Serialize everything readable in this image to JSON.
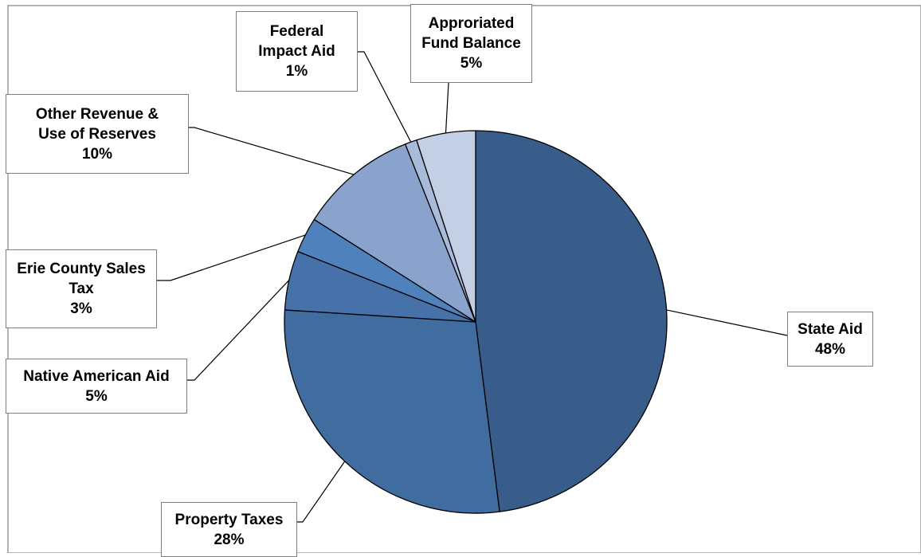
{
  "chart_data": {
    "type": "pie",
    "title": "",
    "slices": [
      {
        "label_lines": [
          "State Aid"
        ],
        "percent_label": "48%",
        "value": 48,
        "color": "#385d8a"
      },
      {
        "label_lines": [
          "Property Taxes"
        ],
        "percent_label": "28%",
        "value": 28,
        "color": "#416c9f"
      },
      {
        "label_lines": [
          "Native American Aid"
        ],
        "percent_label": "5%",
        "value": 5,
        "color": "#4672a9"
      },
      {
        "label_lines": [
          "Erie County Sales",
          "Tax"
        ],
        "percent_label": "3%",
        "value": 3,
        "color": "#4f81bd"
      },
      {
        "label_lines": [
          "Other Revenue &",
          "Use of Reserves"
        ],
        "percent_label": "10%",
        "value": 10,
        "color": "#8aa3cd"
      },
      {
        "label_lines": [
          "Federal",
          "Impact Aid"
        ],
        "percent_label": "1%",
        "value": 1,
        "color": "#a8bbdb"
      },
      {
        "label_lines": [
          "Approriated",
          "Fund Balance"
        ],
        "percent_label": "5%",
        "value": 5,
        "color": "#c3cfe4"
      }
    ],
    "start_angle_deg": 0,
    "direction": "clockwise",
    "legend": "none",
    "leader_lines": true
  }
}
